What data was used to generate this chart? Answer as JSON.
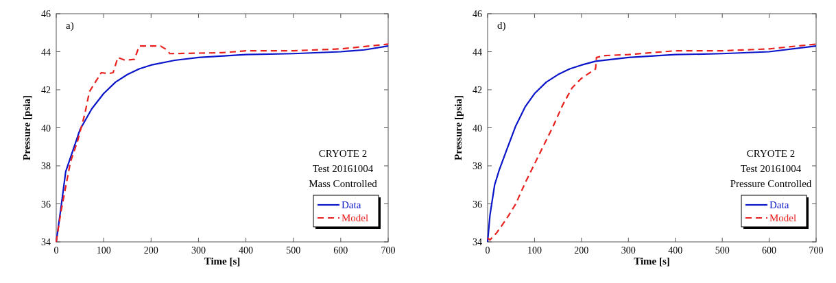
{
  "chart_data": [
    {
      "type": "line",
      "xlabel": "Time [s]",
      "ylabel": "Pressure [psia]",
      "xlim": [
        0,
        700
      ],
      "xticks": [
        0,
        100,
        200,
        300,
        400,
        500,
        600,
        700
      ],
      "ylim": [
        34,
        46
      ],
      "yticks": [
        34,
        36,
        38,
        40,
        42,
        44,
        46
      ],
      "grid": false,
      "legend": "bottom right",
      "annotations": [
        "a)",
        "CRYOTE 2",
        "Test 20161004",
        "Mass Controlled"
      ],
      "series": [
        {
          "name": "Data",
          "color": "#0a14c8",
          "line_style": "solid",
          "x": [
            0,
            10,
            20,
            35,
            50,
            75,
            100,
            125,
            150,
            175,
            200,
            250,
            300,
            400,
            500,
            600,
            650,
            700
          ],
          "values": [
            34,
            35.8,
            37.7,
            38.8,
            39.9,
            41.0,
            41.8,
            42.4,
            42.8,
            43.1,
            43.3,
            43.55,
            43.7,
            43.85,
            43.9,
            44.0,
            44.1,
            44.3
          ]
        },
        {
          "name": "Model",
          "color": "#e8201e",
          "line_style": "dashed",
          "x": [
            0,
            10,
            20,
            30,
            45,
            60,
            70,
            85,
            95,
            110,
            120,
            130,
            145,
            165,
            175,
            220,
            230,
            240,
            350,
            400,
            500,
            600,
            700
          ],
          "values": [
            34,
            35.6,
            36.9,
            38.2,
            39.3,
            40.7,
            41.9,
            42.5,
            42.9,
            42.85,
            42.9,
            43.7,
            43.55,
            43.6,
            44.3,
            44.3,
            44.15,
            43.9,
            43.95,
            44.05,
            44.05,
            44.15,
            44.4
          ]
        }
      ]
    },
    {
      "type": "line",
      "xlabel": "Time [s]",
      "ylabel": "Pressure [psia]",
      "xlim": [
        0,
        700
      ],
      "xticks": [
        0,
        100,
        200,
        300,
        400,
        500,
        600,
        700
      ],
      "ylim": [
        34,
        46
      ],
      "yticks": [
        34,
        36,
        38,
        40,
        42,
        44,
        46
      ],
      "grid": false,
      "legend": "bottom right",
      "annotations": [
        "d)",
        "CRYOTE 2",
        "Test 20161004",
        "Pressure Controlled"
      ],
      "series": [
        {
          "name": "Data",
          "color": "#0a14c8",
          "line_style": "solid",
          "x": [
            0,
            5,
            15,
            25,
            40,
            60,
            80,
            100,
            125,
            150,
            175,
            200,
            230,
            300,
            400,
            500,
            600,
            700
          ],
          "values": [
            34,
            35.4,
            37.0,
            37.8,
            38.8,
            40.1,
            41.1,
            41.8,
            42.4,
            42.8,
            43.1,
            43.3,
            43.5,
            43.7,
            43.85,
            43.9,
            44.0,
            44.3
          ]
        },
        {
          "name": "Model",
          "color": "#e8201e",
          "line_style": "dashed",
          "x": [
            0,
            5,
            20,
            40,
            60,
            80,
            100,
            120,
            140,
            160,
            180,
            200,
            230,
            232,
            250,
            300,
            400,
            500,
            600,
            700
          ],
          "values": [
            34.2,
            34.1,
            34.5,
            35.2,
            36.0,
            37.1,
            38.1,
            39.1,
            40.1,
            41.2,
            42.1,
            42.6,
            43.1,
            43.7,
            43.8,
            43.85,
            44.05,
            44.05,
            44.15,
            44.4
          ]
        }
      ]
    }
  ]
}
